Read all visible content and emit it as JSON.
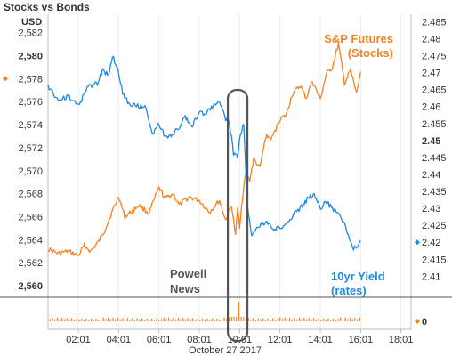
{
  "chart_data": {
    "type": "line",
    "title": "Stocks vs Bonds",
    "xlabel": "October 27 2017",
    "x_ticks": [
      "02:01",
      "04:01",
      "06:01",
      "08:01",
      "10:01",
      "12:01",
      "14:01",
      "16:01",
      "18:01"
    ],
    "x_range": [
      0.5,
      18.5
    ],
    "left_axis": {
      "unit": "USD",
      "range": [
        2559,
        2583.6
      ],
      "ticks": [
        "2,582",
        "2,580",
        "2,578",
        "2,576",
        "2,574",
        "2,572",
        "2,570",
        "2,568",
        "2,566",
        "2,564",
        "2,562",
        "2,560"
      ],
      "tick_values": [
        2582,
        2580,
        2578,
        2576,
        2574,
        2572,
        2570,
        2568,
        2566,
        2564,
        2562,
        2560
      ],
      "bold_ticks": [
        "2,580",
        "2,560"
      ],
      "marker_value": "2,578"
    },
    "right_axis": {
      "range": [
        2.4038,
        2.4872
      ],
      "ticks": [
        "2.485",
        "2.48",
        "2.475",
        "2.47",
        "2.465",
        "2.46",
        "2.455",
        "2.45",
        "2.445",
        "2.44",
        "2.435",
        "2.43",
        "2.425",
        "2.42",
        "2.415",
        "2.41"
      ],
      "tick_values": [
        2.485,
        2.48,
        2.475,
        2.47,
        2.465,
        2.46,
        2.455,
        2.45,
        2.445,
        2.44,
        2.435,
        2.43,
        2.425,
        2.42,
        2.415,
        2.41
      ],
      "bold_ticks": [
        "2.45"
      ],
      "marker_value": "2.42"
    },
    "volume_axis": {
      "ticks": [
        "0"
      ]
    },
    "series": [
      {
        "name": "S&P Futures (Stocks)",
        "color": "#F5821F",
        "axis": "left",
        "x": [
          0.5,
          1.0,
          1.5,
          2.0,
          2.3,
          2.6,
          3.0,
          3.3,
          3.7,
          4.0,
          4.3,
          4.7,
          5.0,
          5.5,
          6.0,
          6.3,
          6.7,
          7.0,
          7.5,
          8.0,
          8.5,
          9.0,
          9.3,
          9.6,
          9.8,
          9.9,
          10.0,
          10.1,
          10.3,
          10.5,
          10.7,
          11.0,
          11.3,
          11.6,
          12.0,
          12.3,
          12.6,
          13.0,
          13.3,
          13.6,
          14.0,
          14.3,
          14.6,
          14.9,
          15.2,
          15.5,
          15.8,
          16.0
        ],
        "values": [
          2563.2,
          2562.8,
          2563.0,
          2562.6,
          2563.5,
          2563.0,
          2563.8,
          2564.8,
          2566.5,
          2567.8,
          2566.0,
          2566.5,
          2567.0,
          2566.3,
          2568.5,
          2567.6,
          2568.0,
          2567.0,
          2567.7,
          2567.4,
          2566.4,
          2567.4,
          2565.7,
          2567.0,
          2564.3,
          2566.8,
          2565.2,
          2567.0,
          2569.8,
          2569.2,
          2571.0,
          2570.2,
          2573.0,
          2572.8,
          2574.5,
          2574.8,
          2576.6,
          2577.4,
          2576.3,
          2577.8,
          2576.2,
          2578.4,
          2579.0,
          2581.0,
          2577.6,
          2578.7,
          2576.7,
          2578.6
        ]
      },
      {
        "name": "10yr Yield (rates)",
        "color": "#1E88E5",
        "axis": "right",
        "x": [
          0.5,
          1.0,
          1.5,
          2.0,
          2.5,
          3.0,
          3.2,
          3.5,
          3.7,
          4.0,
          4.2,
          4.5,
          5.0,
          5.3,
          5.7,
          6.0,
          6.3,
          6.7,
          7.0,
          7.3,
          7.6,
          8.0,
          8.3,
          8.6,
          9.0,
          9.3,
          9.5,
          9.7,
          9.9,
          10.0,
          10.2,
          10.4,
          10.6,
          11.0,
          11.3,
          11.7,
          12.0,
          12.5,
          13.0,
          13.4,
          13.7,
          14.0,
          14.3,
          14.6,
          15.0,
          15.3,
          15.6,
          16.0
        ],
        "values": [
          2.466,
          2.462,
          2.463,
          2.46,
          2.466,
          2.467,
          2.471,
          2.469,
          2.475,
          2.47,
          2.464,
          2.461,
          2.46,
          2.46,
          2.452,
          2.455,
          2.451,
          2.452,
          2.454,
          2.457,
          2.454,
          2.458,
          2.458,
          2.46,
          2.462,
          2.456,
          2.455,
          2.446,
          2.445,
          2.45,
          2.455,
          2.43,
          2.422,
          2.425,
          2.426,
          2.424,
          2.424,
          2.427,
          2.43,
          2.433,
          2.434,
          2.43,
          2.432,
          2.43,
          2.428,
          2.424,
          2.418,
          2.42
        ]
      }
    ],
    "volume_spike_at": "10:01",
    "annotations": {
      "sp": [
        "S&P Futures",
        "(Stocks)"
      ],
      "yield": [
        "10yr Yield",
        "(rates)"
      ],
      "powell": [
        "Powell",
        "News"
      ]
    }
  }
}
